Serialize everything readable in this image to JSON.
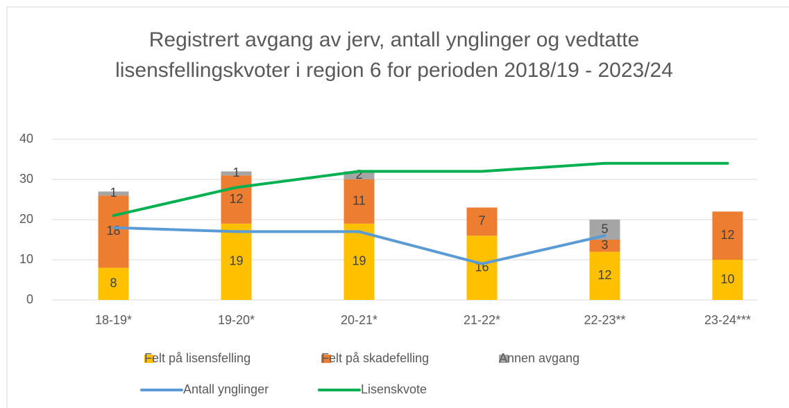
{
  "chart_data": {
    "type": "bar",
    "stacked": true,
    "title": "Registrert avgang av jerv, antall ynglinger og vedtatte lisensfellingskvoter i region 6 for perioden 2018/19 - 2023/24",
    "categories": [
      "18-19*",
      "19-20*",
      "20-21*",
      "21-22*",
      "22-23**",
      "23-24***"
    ],
    "series": [
      {
        "name": "Felt på lisensfelling",
        "type": "bar",
        "color": "#ffc000",
        "values": [
          8,
          19,
          19,
          16,
          12,
          10
        ]
      },
      {
        "name": "Felt på skadefelling",
        "type": "bar",
        "color": "#ed7d31",
        "values": [
          18,
          12,
          11,
          7,
          3,
          12
        ]
      },
      {
        "name": "Annen avgang",
        "type": "bar",
        "color": "#a5a5a5",
        "values": [
          1,
          1,
          2,
          null,
          5,
          null
        ]
      },
      {
        "name": "Antall ynglinger",
        "type": "line",
        "color": "#5b9bd5",
        "values": [
          18,
          17,
          17,
          9,
          16,
          null
        ]
      },
      {
        "name": "Lisenskvote",
        "type": "line",
        "color": "#00b050",
        "values": [
          21,
          28,
          32,
          32,
          34,
          34
        ]
      }
    ],
    "ylim": [
      0,
      40
    ],
    "yticks": [
      0,
      10,
      20,
      30,
      40
    ],
    "grid": true
  }
}
